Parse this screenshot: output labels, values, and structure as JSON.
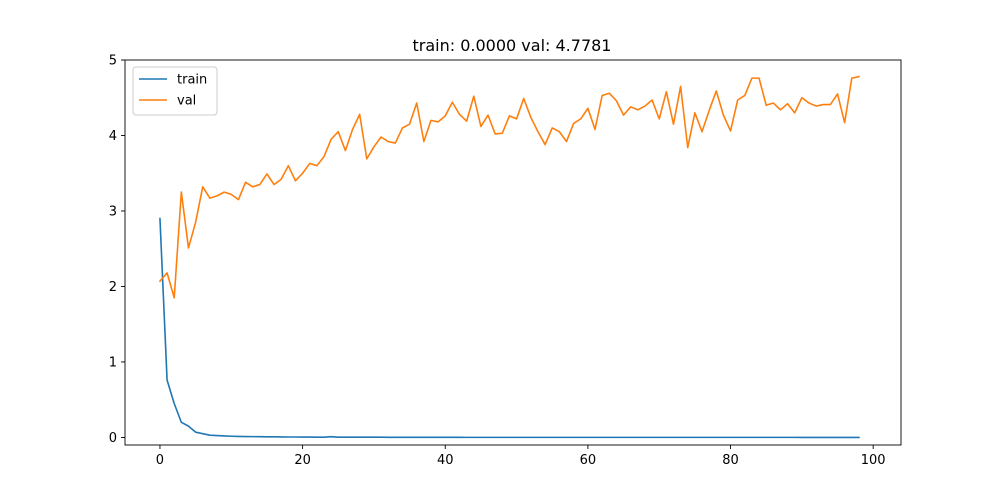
{
  "chart_data": {
    "type": "line",
    "title": "train: 0.0000 val: 4.7781",
    "xlabel": "",
    "ylabel": "",
    "xlim": [
      -4.9,
      103.9
    ],
    "ylim": [
      -0.1,
      5.0
    ],
    "xticks": [
      0,
      20,
      40,
      60,
      80,
      100
    ],
    "yticks": [
      0,
      1,
      2,
      3,
      4,
      5
    ],
    "legend_position": "top-left",
    "grid": false,
    "series": [
      {
        "name": "train",
        "color": "#1f77b4",
        "x": [
          0,
          1,
          2,
          3,
          4,
          5,
          6,
          7,
          8,
          9,
          10,
          11,
          12,
          13,
          14,
          15,
          16,
          17,
          18,
          19,
          20,
          21,
          22,
          23,
          24,
          25,
          26,
          27,
          28,
          29,
          30,
          31,
          32,
          33,
          34,
          35,
          36,
          37,
          38,
          39,
          40,
          41,
          42,
          43,
          44,
          45,
          46,
          47,
          48,
          49,
          50,
          51,
          52,
          53,
          54,
          55,
          56,
          57,
          58,
          59,
          60,
          61,
          62,
          63,
          64,
          65,
          66,
          67,
          68,
          69,
          70,
          71,
          72,
          73,
          74,
          75,
          76,
          77,
          78,
          79,
          80,
          81,
          82,
          83,
          84,
          85,
          86,
          87,
          88,
          89,
          90,
          91,
          92,
          93,
          94,
          95,
          96,
          97,
          98
        ],
        "values": [
          2.9,
          0.76,
          0.45,
          0.2,
          0.15,
          0.07,
          0.05,
          0.03,
          0.025,
          0.02,
          0.016,
          0.014,
          0.012,
          0.011,
          0.01,
          0.009,
          0.008,
          0.007,
          0.006,
          0.006,
          0.005,
          0.005,
          0.004,
          0.004,
          0.01,
          0.004,
          0.003,
          0.003,
          0.003,
          0.003,
          0.003,
          0.003,
          0.002,
          0.002,
          0.002,
          0.002,
          0.002,
          0.002,
          0.002,
          0.002,
          0.002,
          0.002,
          0.002,
          0.001,
          0.001,
          0.001,
          0.001,
          0.001,
          0.001,
          0.001,
          0.001,
          0.001,
          0.001,
          0.001,
          0.001,
          0.001,
          0.001,
          0.001,
          0.001,
          0.001,
          0.001,
          0.001,
          0.001,
          0.001,
          0.001,
          0.001,
          0.001,
          0.001,
          0.001,
          0.001,
          0.001,
          0.001,
          0.001,
          0.001,
          0.001,
          0.001,
          0.001,
          0.001,
          0.001,
          0.001,
          0.001,
          0.001,
          0.001,
          0.001,
          0.001,
          0.001,
          0.001,
          0.001,
          0.001,
          0.001,
          0.0,
          0.0,
          0.0,
          0.0,
          0.0,
          0.0,
          0.0,
          0.0,
          0.0
        ]
      },
      {
        "name": "val",
        "color": "#ff7f0e",
        "x": [
          0,
          1,
          2,
          3,
          4,
          5,
          6,
          7,
          8,
          9,
          10,
          11,
          12,
          13,
          14,
          15,
          16,
          17,
          18,
          19,
          20,
          21,
          22,
          23,
          24,
          25,
          26,
          27,
          28,
          29,
          30,
          31,
          32,
          33,
          34,
          35,
          36,
          37,
          38,
          39,
          40,
          41,
          42,
          43,
          44,
          45,
          46,
          47,
          48,
          49,
          50,
          51,
          52,
          53,
          54,
          55,
          56,
          57,
          58,
          59,
          60,
          61,
          62,
          63,
          64,
          65,
          66,
          67,
          68,
          69,
          70,
          71,
          72,
          73,
          74,
          75,
          76,
          77,
          78,
          79,
          80,
          81,
          82,
          83,
          84,
          85,
          86,
          87,
          88,
          89,
          90,
          91,
          92,
          93,
          94,
          95,
          96,
          97,
          98
        ],
        "values": [
          2.07,
          2.18,
          1.85,
          3.25,
          2.51,
          2.85,
          3.32,
          3.17,
          3.2,
          3.25,
          3.22,
          3.15,
          3.38,
          3.32,
          3.35,
          3.49,
          3.35,
          3.42,
          3.6,
          3.4,
          3.5,
          3.63,
          3.6,
          3.72,
          3.95,
          4.05,
          3.8,
          4.08,
          4.28,
          3.69,
          3.85,
          3.98,
          3.92,
          3.9,
          4.1,
          4.15,
          4.43,
          3.92,
          4.2,
          4.18,
          4.26,
          4.44,
          4.28,
          4.19,
          4.52,
          4.12,
          4.27,
          4.02,
          4.03,
          4.26,
          4.22,
          4.49,
          4.24,
          4.05,
          3.88,
          4.1,
          4.05,
          3.92,
          4.16,
          4.22,
          4.36,
          4.08,
          4.53,
          4.56,
          4.46,
          4.27,
          4.38,
          4.34,
          4.39,
          4.47,
          4.22,
          4.58,
          4.15,
          4.65,
          3.84,
          4.3,
          4.05,
          4.33,
          4.59,
          4.27,
          4.06,
          4.47,
          4.53,
          4.76,
          4.76,
          4.4,
          4.43,
          4.34,
          4.42,
          4.3,
          4.5,
          4.43,
          4.39,
          4.41,
          4.41,
          4.55,
          4.17,
          4.76,
          4.78
        ]
      }
    ]
  }
}
